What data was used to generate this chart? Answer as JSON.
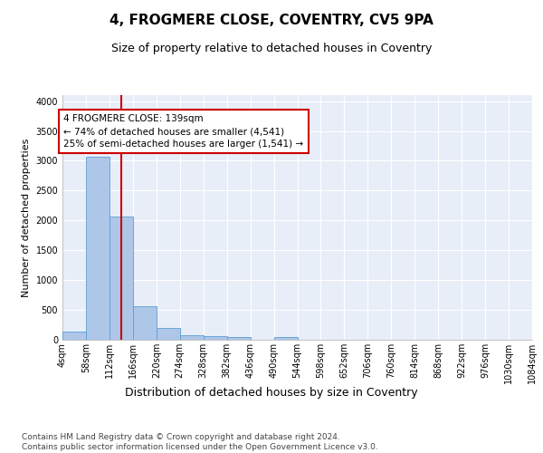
{
  "title": "4, FROGMERE CLOSE, COVENTRY, CV5 9PA",
  "subtitle": "Size of property relative to detached houses in Coventry",
  "xlabel": "Distribution of detached houses by size in Coventry",
  "ylabel": "Number of detached properties",
  "bin_edges": [
    4,
    58,
    112,
    166,
    220,
    274,
    328,
    382,
    436,
    490,
    544,
    598,
    652,
    706,
    760,
    814,
    868,
    922,
    976,
    1030,
    1084
  ],
  "bar_heights": [
    130,
    3060,
    2060,
    560,
    195,
    80,
    55,
    40,
    0,
    50,
    0,
    0,
    0,
    0,
    0,
    0,
    0,
    0,
    0,
    0
  ],
  "bar_color": "#aec6e8",
  "bar_edge_color": "#5a9fd4",
  "ylim": [
    0,
    4100
  ],
  "yticks": [
    0,
    500,
    1000,
    1500,
    2000,
    2500,
    3000,
    3500,
    4000
  ],
  "property_size": 139,
  "red_line_color": "#cc0000",
  "annotation_line1": "4 FROGMERE CLOSE: 139sqm",
  "annotation_line2": "← 74% of detached houses are smaller (4,541)",
  "annotation_line3": "25% of semi-detached houses are larger (1,541) →",
  "annotation_box_color": "#cc0000",
  "background_color": "#e8eef8",
  "grid_color": "#ffffff",
  "footer_text": "Contains HM Land Registry data © Crown copyright and database right 2024.\nContains public sector information licensed under the Open Government Licence v3.0.",
  "title_fontsize": 11,
  "subtitle_fontsize": 9,
  "xlabel_fontsize": 9,
  "ylabel_fontsize": 8,
  "tick_fontsize": 7,
  "annotation_fontsize": 7.5,
  "footer_fontsize": 6.5
}
